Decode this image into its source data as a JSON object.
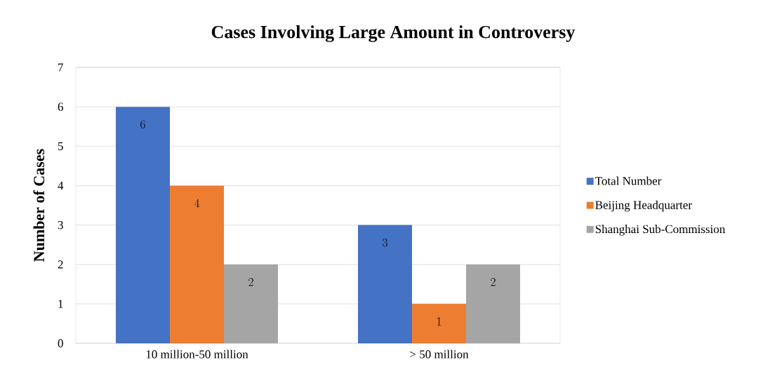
{
  "chart_data": {
    "type": "bar",
    "title": "Cases Involving Large Amount in Controversy",
    "ylabel": "Number of Cases",
    "categories": [
      "10 million-50 million",
      "> 50 million"
    ],
    "series": [
      {
        "name": "Total Number",
        "color": "#4472c4",
        "values": [
          6,
          3
        ]
      },
      {
        "name": "Beijing Headquarter",
        "color": "#ed7d31",
        "values": [
          4,
          1
        ]
      },
      {
        "name": "Shanghai Sub-Commission",
        "color": "#a5a5a5",
        "values": [
          2,
          2
        ]
      }
    ],
    "ylim": [
      0,
      7
    ],
    "yticks": [
      0,
      1,
      2,
      3,
      4,
      5,
      6,
      7
    ],
    "grid": "y",
    "legend": "right",
    "data_labels": true
  }
}
